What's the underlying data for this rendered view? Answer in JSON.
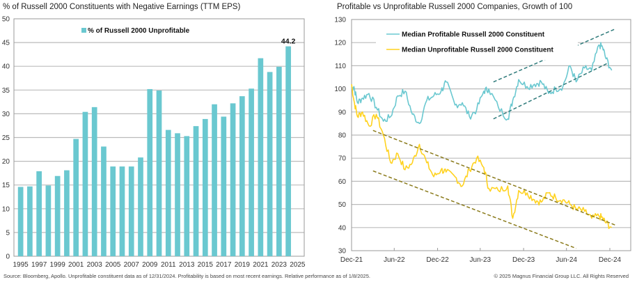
{
  "colors": {
    "bar": "#6AC8D0",
    "profitable": "#6AC8D0",
    "unprofitable": "#FFD21F",
    "trend_profitable": "#2E7A7A",
    "trend_unprofitable": "#8A7A1A",
    "grid": "#BBBBBB",
    "axis": "#999999"
  },
  "footer": {
    "source": "Source: Bloomberg, Apollo. Unprofitable constituent data as of 12/31/2024. Profitability is based on most recent earnings. Relative performance as of 1/8/2025.",
    "copyright": "© 2025 Magnus Financial Group LLC. All Rights Reserved"
  },
  "chart_data": [
    {
      "type": "bar",
      "title": "% of Russell 2000 Constituents with Negative Earnings (TTM EPS)",
      "xlabel": "",
      "ylabel": "",
      "ylim": [
        0,
        50
      ],
      "yticks": [
        0,
        5,
        10,
        15,
        20,
        25,
        30,
        35,
        40,
        45,
        50
      ],
      "xtick_labels": [
        "1995",
        "1997",
        "1999",
        "2001",
        "2003",
        "2005",
        "2007",
        "2009",
        "2011",
        "2013",
        "2015",
        "2017",
        "2019",
        "2021",
        "2023",
        "2025"
      ],
      "grid": true,
      "legend": {
        "placement": "top-center",
        "entries": [
          "% of Russell 2000 Unprofitable"
        ]
      },
      "categories": [
        "1995",
        "1996",
        "1997",
        "1998",
        "1999",
        "2000",
        "2001",
        "2002",
        "2003",
        "2004",
        "2005",
        "2006",
        "2007",
        "2008",
        "2009",
        "2010",
        "2011",
        "2012",
        "2013",
        "2014",
        "2015",
        "2016",
        "2017",
        "2018",
        "2019",
        "2020",
        "2021",
        "2022",
        "2023",
        "2024"
      ],
      "series": [
        {
          "name": "% of Russell 2000 Unprofitable",
          "values": [
            14.6,
            14.7,
            17.9,
            14.9,
            16.9,
            18.1,
            24.7,
            30.4,
            31.4,
            23.1,
            18.9,
            18.9,
            18.9,
            20.8,
            35.2,
            34.9,
            26.6,
            25.9,
            25.3,
            27.4,
            28.9,
            32.0,
            29.4,
            32.2,
            33.7,
            35.3,
            41.7,
            38.8,
            39.9,
            44.2
          ]
        }
      ],
      "annotations": [
        {
          "category": "2024",
          "text": "44.2"
        }
      ]
    },
    {
      "type": "line",
      "title": "Profitable vs Unprofitable Russell 2000 Companies, Growth of 100",
      "xlabel": "",
      "ylabel": "",
      "ylim": [
        30,
        130
      ],
      "yticks": [
        30,
        40,
        50,
        60,
        70,
        80,
        90,
        100,
        110,
        120,
        130
      ],
      "xtick_labels": [
        "Dec-21",
        "Jun-22",
        "Dec-22",
        "Jun-23",
        "Dec-23",
        "Jun-24",
        "Dec-24"
      ],
      "grid": true,
      "legend": {
        "placement": "top-left",
        "entries": [
          "Median Profitable Russell 2000 Constituent",
          "Median Unprofitable Russell 2000 Constituent"
        ]
      },
      "x": [
        "2021-12-31",
        "2022-01-10",
        "2022-01-25",
        "2022-02-15",
        "2022-03-15",
        "2022-04-15",
        "2022-05-15",
        "2022-06-15",
        "2022-07-15",
        "2022-08-15",
        "2022-09-15",
        "2022-10-15",
        "2022-11-15",
        "2022-12-15",
        "2023-01-15",
        "2023-02-05",
        "2023-03-15",
        "2023-04-15",
        "2023-05-15",
        "2023-06-15",
        "2023-07-15",
        "2023-08-05",
        "2023-09-15",
        "2023-10-25",
        "2023-11-15",
        "2023-12-10",
        "2024-01-15",
        "2024-02-15",
        "2024-03-15",
        "2024-04-15",
        "2024-05-15",
        "2024-06-15",
        "2024-07-15",
        "2024-08-10",
        "2024-09-15",
        "2024-10-15",
        "2024-11-15",
        "2024-11-30",
        "2024-12-15",
        "2025-01-08"
      ],
      "series": [
        {
          "name": "Median Profitable Russell 2000 Constituent",
          "values": [
            100,
            101,
            94,
            96,
            98,
            92,
            86,
            88,
            97,
            99,
            89,
            85,
            95,
            97,
            99,
            103,
            93,
            94,
            88,
            91,
            99,
            100,
            92,
            87,
            95,
            104,
            101,
            102,
            103,
            98,
            100,
            101,
            110,
            103,
            109,
            108,
            119,
            118,
            113,
            108
          ]
        },
        {
          "name": "Median Unprofitable Russell 2000 Constituent",
          "values": [
            102,
            95,
            88,
            90,
            84,
            89,
            80,
            68,
            72,
            65,
            68,
            76,
            68,
            62,
            65,
            64,
            62,
            58,
            65,
            70,
            66,
            57,
            56,
            58,
            44,
            56,
            55,
            52,
            51,
            55,
            53,
            52,
            50,
            48,
            47,
            44,
            45,
            44,
            42,
            40
          ]
        }
      ],
      "trend_lines": [
        {
          "name": "profitable-channel-upper",
          "from": [
            "2023-08-25",
            103
          ],
          "to": [
            "2025-01-25",
            126
          ]
        },
        {
          "name": "profitable-channel-lower",
          "from": [
            "2023-08-25",
            87
          ],
          "to": [
            "2024-12-20",
            111
          ]
        },
        {
          "name": "unprofitable-channel-upper",
          "from": [
            "2022-04-01",
            82
          ],
          "to": [
            "2025-01-25",
            41
          ]
        },
        {
          "name": "unprofitable-channel-lower",
          "from": [
            "2022-04-01",
            64.5
          ],
          "to": [
            "2024-08-10",
            31
          ]
        }
      ]
    }
  ]
}
